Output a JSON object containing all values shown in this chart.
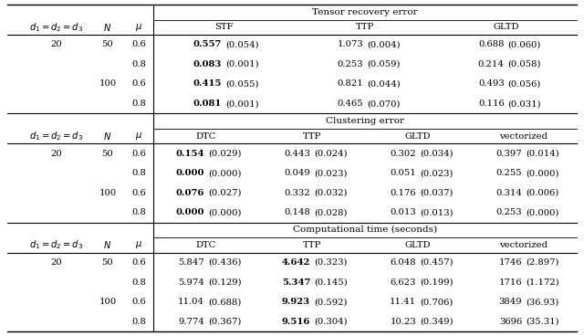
{
  "sections": [
    {
      "section_title": "Tensor recovery error",
      "col_headers": [
        "STF",
        "TTP",
        "GLTD",
        ""
      ],
      "rows": [
        {
          "d": "20",
          "N": "50",
          "mu": "0.6",
          "vals": [
            [
              "0.557",
              "(0.054)"
            ],
            [
              "1.073",
              "(0.004)"
            ],
            [
              "0.688",
              "(0.060)"
            ],
            null
          ],
          "bold": [
            true,
            false,
            false,
            false
          ]
        },
        {
          "d": "",
          "N": "",
          "mu": "0.8",
          "vals": [
            [
              "0.083",
              "(0.001)"
            ],
            [
              "0.253",
              "(0.059)"
            ],
            [
              "0.214",
              "(0.058)"
            ],
            null
          ],
          "bold": [
            true,
            false,
            false,
            false
          ]
        },
        {
          "d": "",
          "N": "100",
          "mu": "0.6",
          "vals": [
            [
              "0.415",
              "(0.055)"
            ],
            [
              "0.821",
              "(0.044)"
            ],
            [
              "0.493",
              "(0.056)"
            ],
            null
          ],
          "bold": [
            true,
            false,
            false,
            false
          ]
        },
        {
          "d": "",
          "N": "",
          "mu": "0.8",
          "vals": [
            [
              "0.081",
              "(0.001)"
            ],
            [
              "0.465",
              "(0.070)"
            ],
            [
              "0.116",
              "(0.031)"
            ],
            null
          ],
          "bold": [
            true,
            false,
            false,
            false
          ]
        }
      ]
    },
    {
      "section_title": "Clustering error",
      "col_headers": [
        "DTC",
        "TTP",
        "GLTD",
        "vectorized"
      ],
      "rows": [
        {
          "d": "20",
          "N": "50",
          "mu": "0.6",
          "vals": [
            [
              "0.154",
              "(0.029)"
            ],
            [
              "0.443",
              "(0.024)"
            ],
            [
              "0.302",
              "(0.034)"
            ],
            [
              "0.397",
              "(0.014)"
            ]
          ],
          "bold": [
            true,
            false,
            false,
            false
          ]
        },
        {
          "d": "",
          "N": "",
          "mu": "0.8",
          "vals": [
            [
              "0.000",
              "(0.000)"
            ],
            [
              "0.049",
              "(0.023)"
            ],
            [
              "0.051",
              "(0.023)"
            ],
            [
              "0.255",
              "(0.000)"
            ]
          ],
          "bold": [
            true,
            false,
            false,
            false
          ]
        },
        {
          "d": "",
          "N": "100",
          "mu": "0.6",
          "vals": [
            [
              "0.076",
              "(0.027)"
            ],
            [
              "0.332",
              "(0.032)"
            ],
            [
              "0.176",
              "(0.037)"
            ],
            [
              "0.314",
              "(0.006)"
            ]
          ],
          "bold": [
            true,
            false,
            false,
            false
          ]
        },
        {
          "d": "",
          "N": "",
          "mu": "0.8",
          "vals": [
            [
              "0.000",
              "(0.000)"
            ],
            [
              "0.148",
              "(0.028)"
            ],
            [
              "0.013",
              "(0.013)"
            ],
            [
              "0.253",
              "(0.000)"
            ]
          ],
          "bold": [
            true,
            false,
            false,
            false
          ]
        }
      ]
    },
    {
      "section_title": "Computational time (seconds)",
      "col_headers": [
        "DTC",
        "TTP",
        "GLTD",
        "vectorized"
      ],
      "rows": [
        {
          "d": "20",
          "N": "50",
          "mu": "0.6",
          "vals": [
            [
              "5.847",
              "(0.436)"
            ],
            [
              "4.642",
              "(0.323)"
            ],
            [
              "6.048",
              "(0.457)"
            ],
            [
              "1746",
              "(2.897)"
            ]
          ],
          "bold": [
            false,
            true,
            false,
            false
          ]
        },
        {
          "d": "",
          "N": "",
          "mu": "0.8",
          "vals": [
            [
              "5.974",
              "(0.129)"
            ],
            [
              "5.347",
              "(0.145)"
            ],
            [
              "6.623",
              "(0.199)"
            ],
            [
              "1716",
              "(1.172)"
            ]
          ],
          "bold": [
            false,
            true,
            false,
            false
          ]
        },
        {
          "d": "",
          "N": "100",
          "mu": "0.6",
          "vals": [
            [
              "11.04",
              "(0.688)"
            ],
            [
              "9.923",
              "(0.592)"
            ],
            [
              "11.41",
              "(0.706)"
            ],
            [
              "3849",
              "(36.93)"
            ]
          ],
          "bold": [
            false,
            true,
            false,
            false
          ]
        },
        {
          "d": "",
          "N": "",
          "mu": "0.8",
          "vals": [
            [
              "9.774",
              "(0.367)"
            ],
            [
              "9.516",
              "(0.304)"
            ],
            [
              "10.23",
              "(0.349)"
            ],
            [
              "3696",
              "(35.31)"
            ]
          ],
          "bold": [
            false,
            true,
            false,
            false
          ]
        }
      ]
    }
  ],
  "left_headers": [
    "$d_1 = d_2 = d_3$",
    "$N$",
    "$\\mu$"
  ],
  "bg_color": "#ffffff",
  "text_color": "#000000",
  "fontsize": 7.2,
  "title_fontsize": 7.5,
  "header_fontsize": 7.2
}
